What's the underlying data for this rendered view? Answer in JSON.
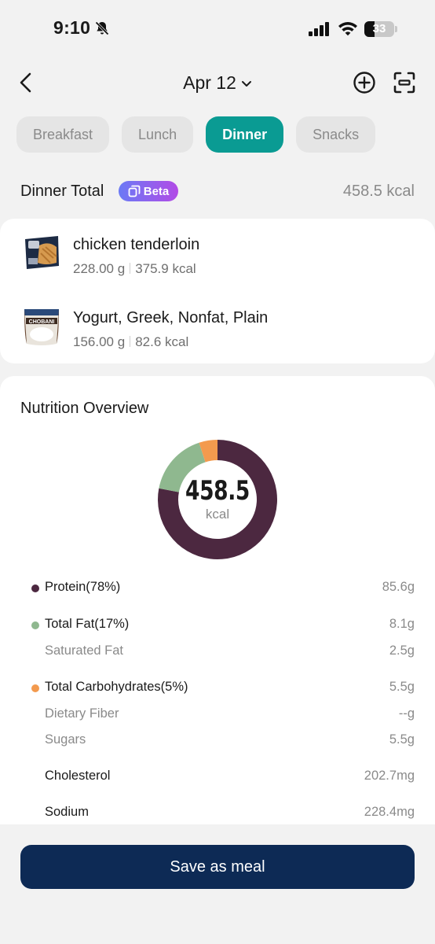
{
  "status_bar": {
    "time": "9:10",
    "battery": "33",
    "battery_level": 0.33
  },
  "header": {
    "date": "Apr 12"
  },
  "tabs": [
    {
      "label": "Breakfast",
      "active": false
    },
    {
      "label": "Lunch",
      "active": false
    },
    {
      "label": "Dinner",
      "active": true
    },
    {
      "label": "Snacks",
      "active": false
    }
  ],
  "total": {
    "label": "Dinner Total",
    "badge": "Beta",
    "value": "458.5 kcal"
  },
  "foods": [
    {
      "name": "chicken tenderloin",
      "weight": "228.00 g",
      "kcal": "375.9 kcal"
    },
    {
      "name": "Yogurt, Greek, Nonfat, Plain",
      "weight": "156.00 g",
      "kcal": "82.6 kcal"
    }
  ],
  "nutrition": {
    "title": "Nutrition Overview",
    "kcal_value": "458.5",
    "kcal_unit": "kcal",
    "rows": [
      {
        "label": "Protein(78%)",
        "value": "85.6g"
      },
      {
        "label": "Total Fat(17%)",
        "value": "8.1g"
      },
      {
        "label": "Saturated Fat",
        "value": "2.5g"
      },
      {
        "label": "Total Carbohydrates(5%)",
        "value": "5.5g"
      },
      {
        "label": "Dietary Fiber",
        "value": "--g"
      },
      {
        "label": "Sugars",
        "value": "5.5g"
      },
      {
        "label": "Cholesterol",
        "value": "202.7mg"
      },
      {
        "label": "Sodium",
        "value": "228.4mg"
      }
    ]
  },
  "chart_data": {
    "type": "pie",
    "categories": [
      "Protein",
      "Total Fat",
      "Total Carbohydrates"
    ],
    "values": [
      78,
      17,
      5
    ],
    "colors": [
      "#4c2840",
      "#8fb88f",
      "#f39a4e"
    ]
  },
  "actions": {
    "save_label": "Save as meal"
  },
  "colors": {
    "accent": "#0a9b93",
    "primary_button": "#0d2a55"
  }
}
